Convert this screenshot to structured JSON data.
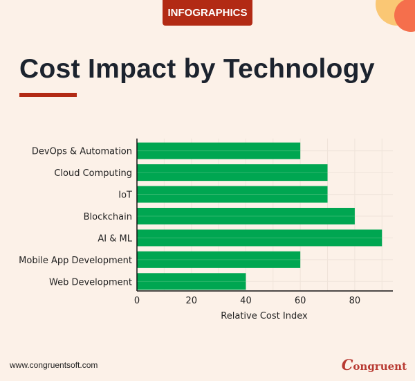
{
  "badge": "INFOGRAPHICS",
  "title": "Cost Impact by Technology",
  "footer": {
    "url": "www.congruentsoft.com",
    "logo": "Congruent"
  },
  "colors": {
    "bar": "#00a651",
    "accent": "#b22a14",
    "background": "#fcf1e8"
  },
  "chart_data": {
    "type": "bar",
    "orientation": "horizontal",
    "categories": [
      "DevOps & Automation",
      "Cloud Computing",
      "IoT",
      "Blockchain",
      "AI & ML",
      "Mobile App Development",
      "Web Development"
    ],
    "values": [
      60,
      70,
      70,
      80,
      90,
      60,
      40
    ],
    "xlabel": "Relative Cost Index",
    "ylabel": "",
    "xlim": [
      0,
      94
    ],
    "xticks": [
      "0",
      "20",
      "40",
      "60",
      "80"
    ],
    "grid": true
  }
}
